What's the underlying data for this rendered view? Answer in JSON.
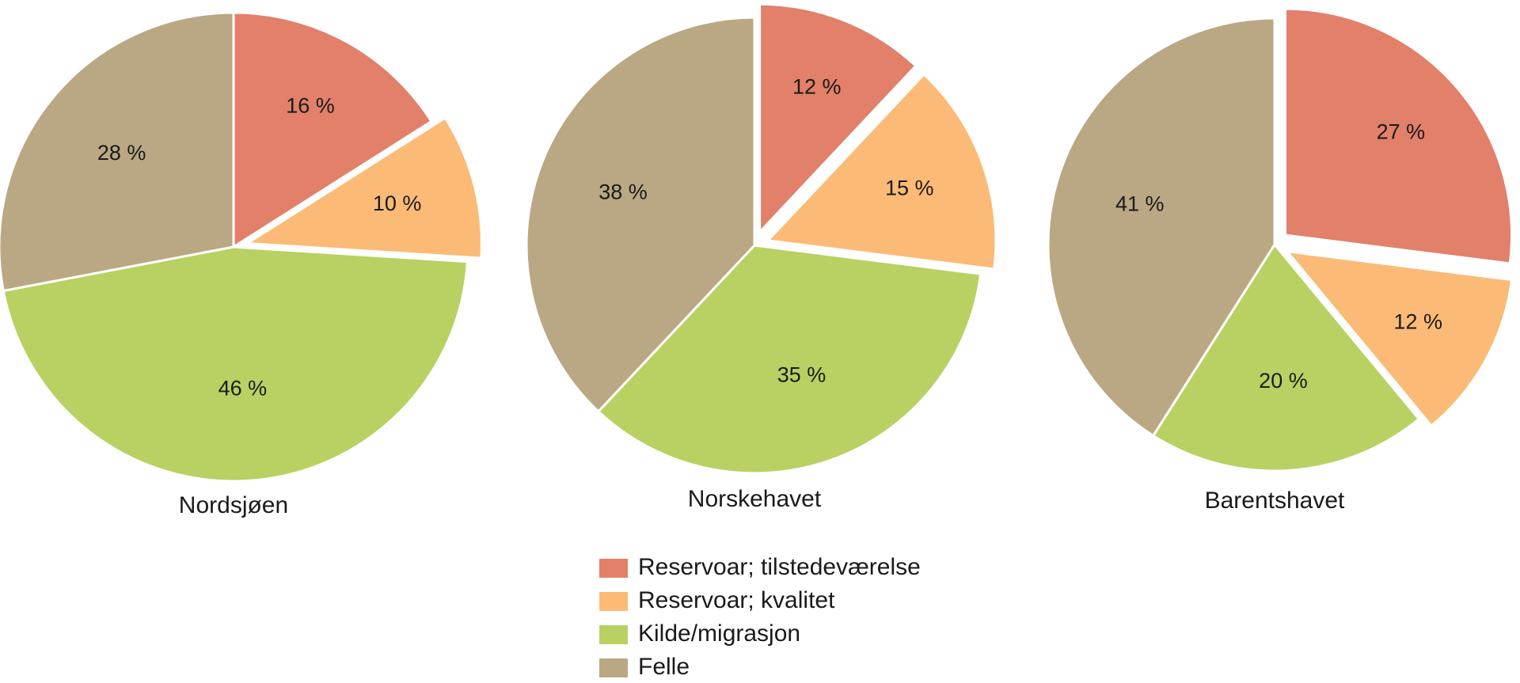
{
  "chart_data": [
    {
      "type": "pie",
      "title": "Nordsjøen",
      "categories": [
        "Reservoar; tilstedeværelse",
        "Reservoar; kvalitet",
        "Kilde/migrasjon",
        "Felle"
      ],
      "values": [
        16,
        10,
        46,
        28
      ],
      "value_labels": [
        "16 %",
        "10 %",
        "46 %",
        "28 %"
      ],
      "exploded": [
        1
      ]
    },
    {
      "type": "pie",
      "title": "Norskehavet",
      "categories": [
        "Reservoar; tilstedeværelse",
        "Reservoar; kvalitet",
        "Kilde/migrasjon",
        "Felle"
      ],
      "values": [
        12,
        15,
        35,
        38
      ],
      "value_labels": [
        "12 %",
        "15 %",
        "35 %",
        "38 %"
      ],
      "exploded": [
        0,
        1
      ]
    },
    {
      "type": "pie",
      "title": "Barentshavet",
      "categories": [
        "Reservoar; tilstedeværelse",
        "Reservoar; kvalitet",
        "Kilde/migrasjon",
        "Felle"
      ],
      "values": [
        27,
        12,
        20,
        41
      ],
      "value_labels": [
        "27 %",
        "12 %",
        "20 %",
        "41 %"
      ],
      "exploded": [
        0,
        1
      ]
    }
  ],
  "legend": {
    "placement": "bottom-center",
    "items": [
      {
        "label": "Reservoar; tilstedeværelse",
        "color": "#e2806a"
      },
      {
        "label": "Reservoar; kvalitet",
        "color": "#fbbb76"
      },
      {
        "label": "Kilde/migrasjon",
        "color": "#b8d162"
      },
      {
        "label": "Felle",
        "color": "#baa884"
      }
    ]
  }
}
